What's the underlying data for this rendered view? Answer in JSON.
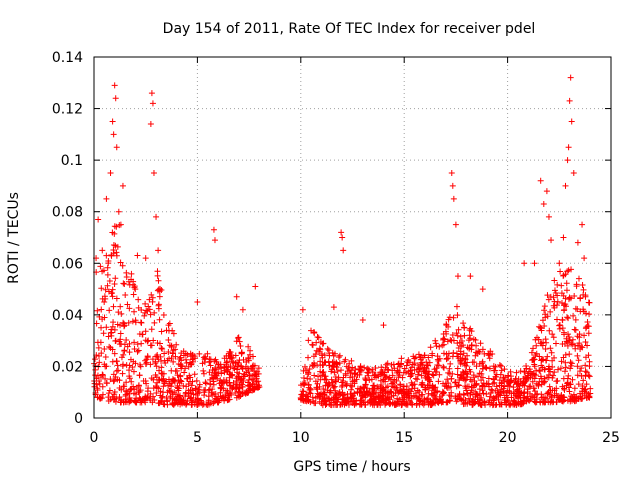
{
  "chart_data": {
    "type": "scatter",
    "title": "Day 154 of 2011, Rate Of TEC Index for receiver pdel",
    "xlabel": "GPS time / hours",
    "ylabel": "ROTI / TECUs",
    "xlim": [
      0,
      25
    ],
    "ylim": [
      0,
      0.14
    ],
    "xticks": [
      0,
      5,
      10,
      15,
      20,
      25
    ],
    "yticks": [
      0,
      0.02,
      0.04,
      0.06,
      0.08,
      0.1,
      0.12,
      0.14
    ],
    "xtick_labels": [
      "0",
      "5",
      "10",
      "15",
      "20",
      "25"
    ],
    "ytick_labels": [
      "0",
      "0.02",
      "0.04",
      "0.06",
      "0.08",
      "0.1",
      "0.12",
      "0.14"
    ],
    "grid": true,
    "marker": "+",
    "color": "#ff0000",
    "data_gap_hours": [
      8.0,
      10.0
    ],
    "envelope": {
      "x": [
        0.0,
        0.5,
        1.0,
        1.5,
        2.0,
        2.5,
        3.0,
        3.5,
        4.0,
        4.5,
        5.0,
        5.5,
        6.0,
        6.5,
        7.0,
        7.5,
        8.0,
        10.0,
        10.5,
        11.0,
        11.5,
        12.0,
        12.5,
        13.0,
        13.5,
        14.0,
        14.5,
        15.0,
        15.5,
        16.0,
        16.5,
        17.0,
        17.5,
        18.0,
        18.5,
        19.0,
        19.5,
        20.0,
        20.5,
        21.0,
        21.5,
        22.0,
        22.5,
        23.0,
        23.5,
        24.0
      ],
      "ymax": [
        0.055,
        0.065,
        0.08,
        0.07,
        0.05,
        0.045,
        0.06,
        0.04,
        0.03,
        0.026,
        0.025,
        0.025,
        0.022,
        0.025,
        0.032,
        0.028,
        0.02,
        0.02,
        0.035,
        0.03,
        0.026,
        0.024,
        0.022,
        0.02,
        0.02,
        0.021,
        0.022,
        0.024,
        0.024,
        0.026,
        0.03,
        0.038,
        0.045,
        0.038,
        0.032,
        0.028,
        0.022,
        0.018,
        0.018,
        0.022,
        0.035,
        0.05,
        0.058,
        0.06,
        0.055,
        0.045
      ],
      "ymin": [
        0.008,
        0.007,
        0.006,
        0.006,
        0.006,
        0.006,
        0.006,
        0.005,
        0.005,
        0.005,
        0.005,
        0.005,
        0.006,
        0.007,
        0.008,
        0.01,
        0.012,
        0.007,
        0.006,
        0.005,
        0.005,
        0.005,
        0.005,
        0.005,
        0.005,
        0.005,
        0.005,
        0.005,
        0.005,
        0.005,
        0.005,
        0.006,
        0.006,
        0.005,
        0.005,
        0.005,
        0.005,
        0.005,
        0.005,
        0.006,
        0.006,
        0.006,
        0.006,
        0.006,
        0.007,
        0.008
      ]
    },
    "outliers": {
      "x": [
        0.1,
        0.2,
        0.4,
        0.6,
        0.8,
        0.9,
        0.95,
        1.0,
        1.05,
        1.1,
        1.2,
        1.3,
        1.4,
        2.1,
        2.5,
        2.75,
        2.8,
        2.85,
        2.9,
        3.0,
        3.1,
        5.0,
        5.8,
        5.85,
        6.9,
        7.2,
        7.8,
        10.1,
        11.6,
        11.95,
        12.0,
        12.05,
        13.0,
        14.0,
        17.3,
        17.35,
        17.4,
        17.5,
        17.6,
        18.2,
        18.8,
        20.8,
        21.3,
        21.6,
        21.75,
        21.9,
        22.0,
        22.1,
        22.5,
        22.7,
        22.8,
        22.9,
        22.95,
        23.0,
        23.05,
        23.1,
        23.2,
        23.4,
        23.6,
        23.7
      ],
      "y": [
        0.062,
        0.077,
        0.065,
        0.085,
        0.095,
        0.115,
        0.11,
        0.129,
        0.124,
        0.105,
        0.08,
        0.075,
        0.09,
        0.063,
        0.062,
        0.114,
        0.126,
        0.122,
        0.095,
        0.078,
        0.065,
        0.045,
        0.073,
        0.069,
        0.047,
        0.042,
        0.051,
        0.042,
        0.043,
        0.072,
        0.07,
        0.065,
        0.038,
        0.036,
        0.095,
        0.09,
        0.085,
        0.075,
        0.055,
        0.055,
        0.05,
        0.06,
        0.06,
        0.092,
        0.083,
        0.088,
        0.078,
        0.069,
        0.06,
        0.07,
        0.09,
        0.1,
        0.105,
        0.123,
        0.132,
        0.115,
        0.095,
        0.068,
        0.075,
        0.062
      ]
    }
  }
}
